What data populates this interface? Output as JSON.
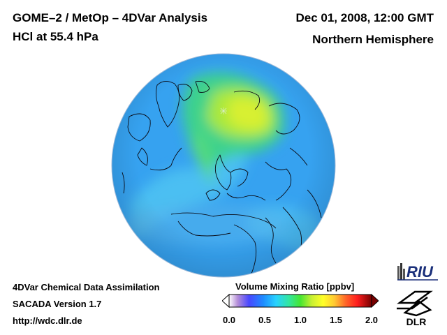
{
  "header": {
    "title_line1": "GOME–2 / MetOp – 4DVar Analysis",
    "title_line2": "HCl at 55.4 hPa",
    "datetime": "Dec 01, 2008, 12:00 GMT",
    "region": "Northern Hemisphere"
  },
  "footer": {
    "line1": "4DVar Chemical Data Assimilation",
    "line2": "SACADA Version 1.7",
    "line3": "http://wdc.dlr.de"
  },
  "legend": {
    "title": "Volume Mixing Ratio [ppbv]",
    "ticks": [
      "0.0",
      "0.5",
      "1.0",
      "1.5",
      "2.0"
    ],
    "range": [
      0.0,
      2.0
    ],
    "colors": [
      "#8a7ad8",
      "#3a50ff",
      "#1e90ff",
      "#32c8ff",
      "#32e6a0",
      "#46e632",
      "#c8f032",
      "#ffff28",
      "#ffc832",
      "#ff7828",
      "#ff2828",
      "#c80014",
      "#780000"
    ]
  },
  "logos": {
    "riu": "RIU",
    "dlr": "DLR"
  },
  "map": {
    "field_colors": {
      "background": "#36a2f0",
      "arctic_high": "#d4f032",
      "ring": "#4cc8f0"
    }
  }
}
